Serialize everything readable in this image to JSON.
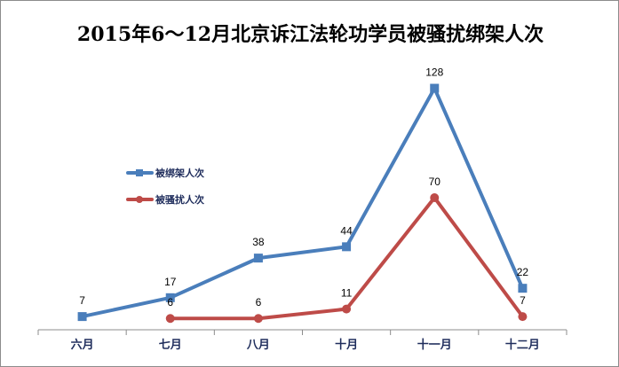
{
  "chart_data": {
    "type": "line",
    "title": "2015年6～12月北京诉江法轮功学员被骚扰绑架人次",
    "categories": [
      "六月",
      "七月",
      "八月",
      "十月",
      "十一月",
      "十二月"
    ],
    "series": [
      {
        "name": "被绑架人次",
        "values": [
          7,
          17,
          38,
          44,
          128,
          22
        ],
        "color": "#4a7ebb",
        "marker": "square"
      },
      {
        "name": "被骚扰人次",
        "values": [
          null,
          6,
          6,
          11,
          70,
          7
        ],
        "color": "#be4b48",
        "marker": "circle"
      }
    ],
    "ylim": [
      0,
      140
    ],
    "grid": false,
    "legend": "middle-left",
    "data_labels": true
  }
}
